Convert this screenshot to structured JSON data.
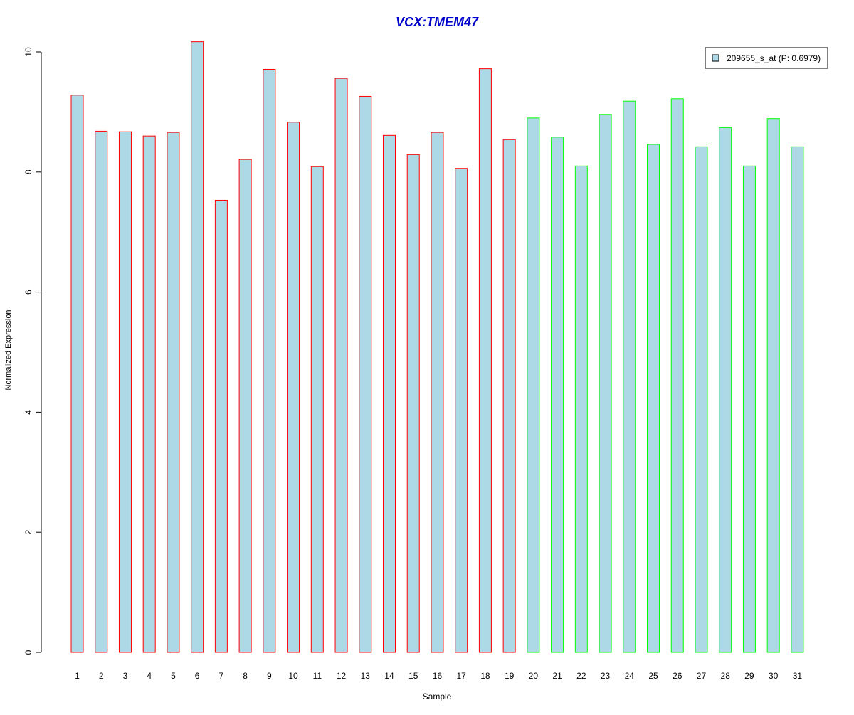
{
  "chart_data": {
    "type": "bar",
    "title": "VCX:TMEM47",
    "xlabel": "Sample",
    "ylabel": "Normalized Expression",
    "ylim": [
      0,
      10.2
    ],
    "yticks": [
      0,
      2,
      4,
      6,
      8,
      10
    ],
    "grid": false,
    "legend_position": "top-right",
    "legend": [
      {
        "label": "209655_s_at (P: 0.6979)",
        "fill": "#add8e6"
      }
    ],
    "categories": [
      "1",
      "2",
      "3",
      "4",
      "5",
      "6",
      "7",
      "8",
      "9",
      "10",
      "11",
      "12",
      "13",
      "14",
      "15",
      "16",
      "17",
      "18",
      "19",
      "20",
      "21",
      "22",
      "23",
      "24",
      "25",
      "26",
      "27",
      "28",
      "29",
      "30",
      "31"
    ],
    "series": [
      {
        "values": [
          9.28,
          8.68,
          8.67,
          8.6,
          8.66,
          10.17,
          7.53,
          8.21,
          9.71,
          8.83,
          8.09,
          9.56,
          9.26,
          8.61,
          8.29,
          8.66,
          8.06,
          9.72,
          8.54,
          8.9,
          8.58,
          8.1,
          8.96,
          9.18,
          8.46,
          9.22,
          8.42,
          8.74,
          8.1,
          8.89,
          8.42
        ],
        "fill": "#add8e6",
        "border_colors": [
          "#ff0000",
          "#ff0000",
          "#ff0000",
          "#ff0000",
          "#ff0000",
          "#ff0000",
          "#ff0000",
          "#ff0000",
          "#ff0000",
          "#ff0000",
          "#ff0000",
          "#ff0000",
          "#ff0000",
          "#ff0000",
          "#ff0000",
          "#ff0000",
          "#ff0000",
          "#ff0000",
          "#ff0000",
          "#00ff00",
          "#00ff00",
          "#00ff00",
          "#00ff00",
          "#00ff00",
          "#00ff00",
          "#00ff00",
          "#00ff00",
          "#00ff00",
          "#00ff00",
          "#00ff00",
          "#00ff00"
        ]
      }
    ],
    "colors": {
      "title": "#0000cc",
      "axis": "#000000"
    }
  }
}
